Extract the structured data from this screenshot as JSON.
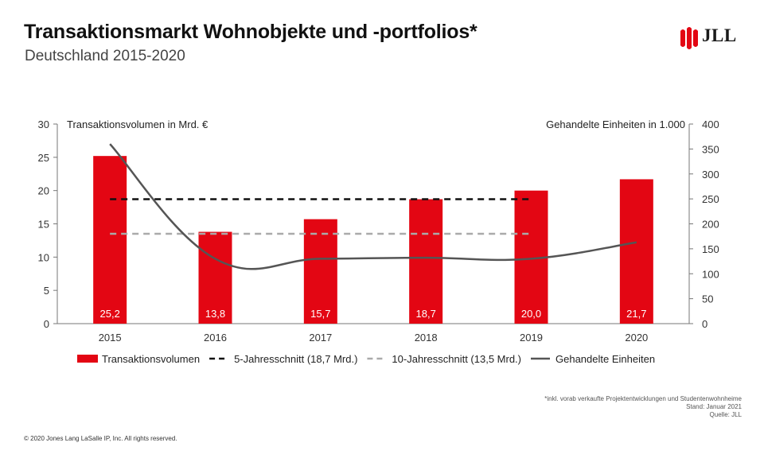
{
  "header": {
    "title": "Transaktionsmarkt Wohnobjekte und -portfolios*",
    "subtitle": "Deutschland 2015-2020"
  },
  "logo": {
    "text": "JLL",
    "color": "#e30613"
  },
  "chart_data": {
    "type": "bar",
    "categories": [
      "2015",
      "2016",
      "2017",
      "2018",
      "2019",
      "2020"
    ],
    "left_axis": {
      "label": "Transaktionsvolumen in Mrd. €",
      "range": [
        0,
        30
      ],
      "ticks": [
        0,
        5,
        10,
        15,
        20,
        25,
        30
      ]
    },
    "right_axis": {
      "label": "Gehandelte Einheiten in 1.000",
      "range": [
        0,
        400
      ],
      "ticks": [
        0,
        50,
        100,
        150,
        200,
        250,
        300,
        350,
        400
      ]
    },
    "series": [
      {
        "name": "Transaktionsvolumen",
        "type": "bar",
        "axis": "left",
        "color": "#e30613",
        "values": [
          25.2,
          13.8,
          15.7,
          18.7,
          20.0,
          21.7
        ],
        "labels": [
          "25,2",
          "13,8",
          "15,7",
          "18,7",
          "20,0",
          "21,7"
        ]
      },
      {
        "name": "5-Jahresschnitt (18,7 Mrd.)",
        "type": "hline",
        "axis": "left",
        "style": "dashed",
        "color": "#111111",
        "value": 18.7,
        "span": [
          "2015",
          "2019"
        ]
      },
      {
        "name": "10-Jahresschnitt (13,5 Mrd.)",
        "type": "hline",
        "axis": "left",
        "style": "dashed",
        "color": "#aaaaaa",
        "value": 13.5,
        "span": [
          "2015",
          "2019"
        ]
      },
      {
        "name": "Gehandelte Einheiten",
        "type": "line",
        "axis": "right",
        "color": "#555555",
        "values": [
          360,
          130,
          130,
          132,
          130,
          163
        ]
      }
    ],
    "grid": false,
    "legend_position": "bottom"
  },
  "footnote": {
    "lines": [
      "*inkl. vorab verkaufte Projektentwicklungen und Studentenwohnheime",
      "Stand: Januar 2021",
      "Quelle: JLL"
    ]
  },
  "copyright": "© 2020 Jones Lang LaSalle IP, Inc. All rights reserved."
}
